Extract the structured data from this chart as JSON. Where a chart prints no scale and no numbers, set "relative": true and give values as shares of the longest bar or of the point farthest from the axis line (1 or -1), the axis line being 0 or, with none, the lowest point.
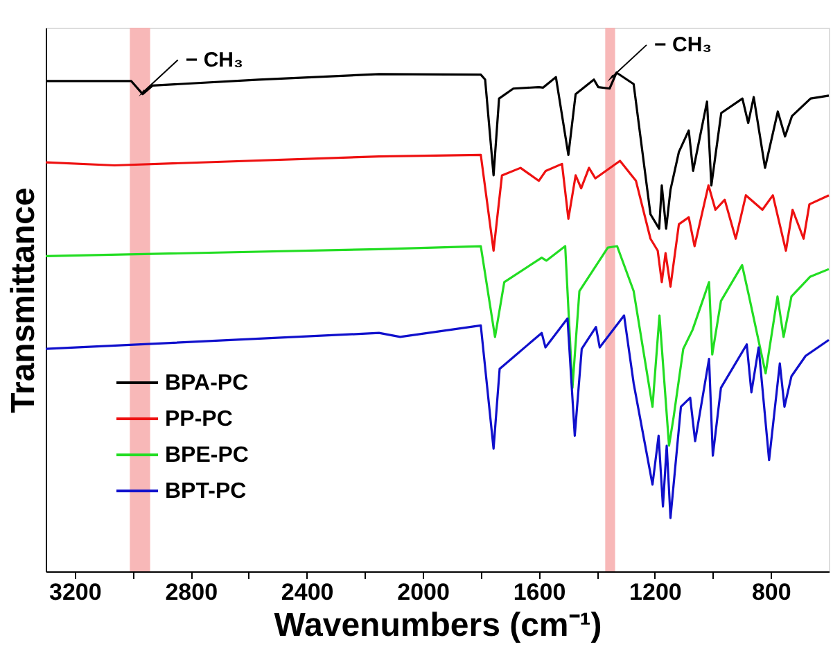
{
  "chart_data": {
    "type": "line",
    "relative": true,
    "xlabel": "Wavenumbers (cm⁻¹)",
    "ylabel": "Transmittance",
    "xlim": [
      3300,
      600
    ],
    "xticks": [
      3200,
      {
        "value": 3000,
        "label": null
      },
      2800,
      {
        "value": 2600,
        "label": null
      },
      2400,
      {
        "value": 2200,
        "label": null
      },
      2000,
      {
        "value": 1800,
        "label": null
      },
      1600,
      {
        "value": 1400,
        "label": null
      },
      1200,
      {
        "value": 1000,
        "label": null
      },
      800
    ],
    "tick_labels": "x",
    "grid": false,
    "legend": "bottom left",
    "line_style": "solid",
    "marker": "none",
    "bands": [
      {
        "axis": "x",
        "from": 3010,
        "to": 2940,
        "color": "#f7b0b0"
      },
      {
        "axis": "x",
        "from": 1371,
        "to": 1337,
        "color": "#f7b0b0"
      }
    ],
    "annotations": [
      {
        "text": "− CH₃",
        "x": 2966,
        "y": 0.96
      },
      {
        "text": "− CH₃",
        "x": 1350,
        "y": 0.99
      }
    ],
    "series": [
      {
        "name": "BPA-PC",
        "color": "#000000",
        "x": [
          3300,
          3005,
          2966,
          2932,
          2566,
          2151,
          1800,
          1785,
          1756,
          1737,
          1688,
          1600,
          1585,
          1541,
          1498,
          1473,
          1410,
          1395,
          1356,
          1332,
          1273,
          1215,
          1185,
          1176,
          1161,
          1146,
          1117,
          1083,
          1068,
          1020,
          1005,
          971,
          898,
          878,
          859,
          820,
          776,
          751,
          727,
          663,
          600
        ],
        "values": [
          0.983,
          0.983,
          0.957,
          0.974,
          0.986,
          0.997,
          0.996,
          0.986,
          0.794,
          0.948,
          0.968,
          0.971,
          0.97,
          0.991,
          0.835,
          0.957,
          0.986,
          0.971,
          0.968,
          1.0,
          0.977,
          0.716,
          0.687,
          0.774,
          0.687,
          0.765,
          0.841,
          0.884,
          0.803,
          0.942,
          0.774,
          0.919,
          0.948,
          0.899,
          0.951,
          0.809,
          0.922,
          0.872,
          0.913,
          0.948,
          0.954
        ]
      },
      {
        "name": "PP-PC",
        "color": "#ee1111",
        "x": [
          3300,
          3063,
          2151,
          1800,
          1756,
          1727,
          1663,
          1600,
          1576,
          1520,
          1498,
          1473,
          1454,
          1427,
          1405,
          1320,
          1265,
          1215,
          1190,
          1176,
          1163,
          1146,
          1117,
          1083,
          1063,
          1015,
          991,
          959,
          921,
          886,
          829,
          793,
          748,
          725,
          687,
          667,
          600
        ],
        "values": [
          0.82,
          0.814,
          0.832,
          0.835,
          0.643,
          0.794,
          0.809,
          0.783,
          0.803,
          0.817,
          0.707,
          0.794,
          0.768,
          0.809,
          0.788,
          0.823,
          0.783,
          0.667,
          0.643,
          0.58,
          0.638,
          0.571,
          0.696,
          0.71,
          0.652,
          0.774,
          0.725,
          0.745,
          0.667,
          0.754,
          0.725,
          0.754,
          0.643,
          0.725,
          0.667,
          0.736,
          0.754
        ]
      },
      {
        "name": "BPE-PC",
        "color": "#22dd22",
        "x": [
          3300,
          2151,
          1800,
          1751,
          1719,
          1590,
          1574,
          1509,
          1484,
          1460,
          1362,
          1330,
          1273,
          1208,
          1184,
          1151,
          1135,
          1102,
          1070,
          1013,
          1002,
          972,
          899,
          875,
          818,
          777,
          756,
          729,
          664,
          600
        ],
        "values": [
          0.632,
          0.646,
          0.652,
          0.47,
          0.58,
          0.629,
          0.623,
          0.652,
          0.368,
          0.562,
          0.649,
          0.652,
          0.562,
          0.33,
          0.513,
          0.252,
          0.31,
          0.446,
          0.484,
          0.58,
          0.435,
          0.542,
          0.614,
          0.551,
          0.397,
          0.551,
          0.47,
          0.551,
          0.591,
          0.606
        ]
      },
      {
        "name": "BPT-PC",
        "color": "#1010cc",
        "x": [
          3300,
          2151,
          2078,
          1800,
          1756,
          1735,
          1590,
          1577,
          1501,
          1476,
          1452,
          1403,
          1390,
          1306,
          1273,
          1208,
          1187,
          1172,
          1159,
          1146,
          1110,
          1078,
          1061,
          1013,
          1000,
          972,
          883,
          867,
          842,
          806,
          769,
          753,
          729,
          680,
          600
        ],
        "values": [
          0.446,
          0.478,
          0.47,
          0.493,
          0.246,
          0.406,
          0.478,
          0.449,
          0.507,
          0.272,
          0.446,
          0.49,
          0.449,
          0.513,
          0.377,
          0.174,
          0.272,
          0.13,
          0.252,
          0.107,
          0.33,
          0.348,
          0.261,
          0.426,
          0.232,
          0.368,
          0.455,
          0.359,
          0.449,
          0.223,
          0.417,
          0.33,
          0.391,
          0.432,
          0.464
        ]
      }
    ]
  }
}
